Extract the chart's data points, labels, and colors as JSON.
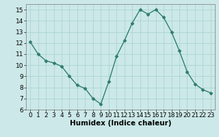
{
  "x": [
    0,
    1,
    2,
    3,
    4,
    5,
    6,
    7,
    8,
    9,
    10,
    11,
    12,
    13,
    14,
    15,
    16,
    17,
    18,
    19,
    20,
    21,
    22,
    23
  ],
  "y": [
    12.1,
    11.0,
    10.4,
    10.2,
    9.9,
    9.0,
    8.2,
    7.9,
    7.0,
    6.5,
    8.5,
    10.8,
    12.2,
    13.8,
    15.0,
    14.6,
    15.0,
    14.3,
    13.0,
    11.3,
    9.4,
    8.3,
    7.8,
    7.5
  ],
  "line_color": "#2e7d6e",
  "marker": "D",
  "marker_size": 2.5,
  "line_width": 1.0,
  "xlabel": "Humidex (Indice chaleur)",
  "xlim": [
    -0.5,
    23.5
  ],
  "ylim": [
    6,
    15.5
  ],
  "yticks": [
    6,
    7,
    8,
    9,
    10,
    11,
    12,
    13,
    14,
    15
  ],
  "xticks": [
    0,
    1,
    2,
    3,
    4,
    5,
    6,
    7,
    8,
    9,
    10,
    11,
    12,
    13,
    14,
    15,
    16,
    17,
    18,
    19,
    20,
    21,
    22,
    23
  ],
  "bg_color": "#cce8e8",
  "grid_color": "#aad4d4",
  "tick_fontsize": 6.5,
  "xlabel_fontsize": 7.5
}
